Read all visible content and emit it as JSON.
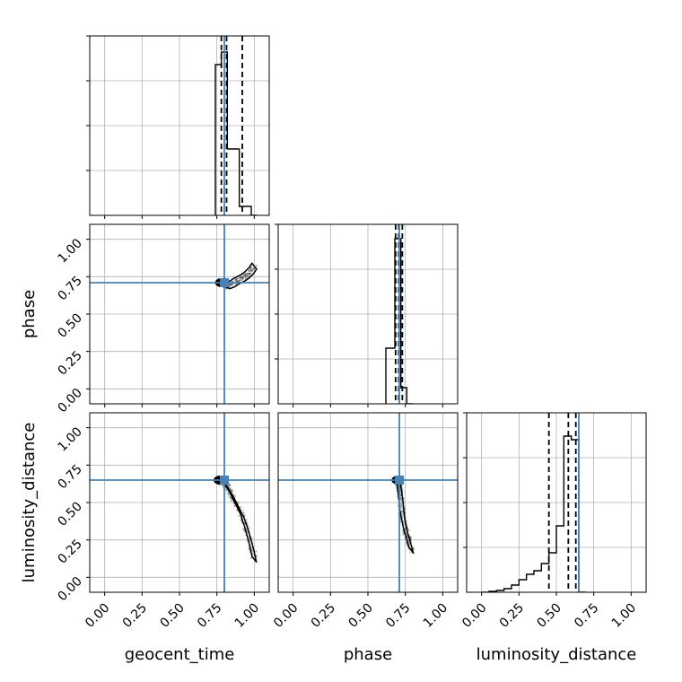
{
  "chart_data": {
    "type": "corner",
    "parameters": [
      "geocent_time",
      "phase",
      "luminosity_distance"
    ],
    "truth_color": "#4682b4",
    "axis_range": [
      -0.1,
      1.1
    ],
    "tick_labels": [
      "0.00",
      "0.25",
      "0.50",
      "0.75",
      "1.00"
    ],
    "tick_values": [
      0.0,
      0.25,
      0.5,
      0.75,
      1.0
    ],
    "truths": {
      "geocent_time": 0.8,
      "phase": 0.71,
      "luminosity_distance": 0.65
    },
    "histograms": {
      "geocent_time": {
        "bin_edges": [
          0.74,
          0.78,
          0.82,
          0.86,
          0.9,
          0.94,
          0.98,
          1.02
        ],
        "counts": [
          0.84,
          0.91,
          0.37,
          0.37,
          0.05,
          0.05,
          0.0
        ],
        "quantile_lines": [
          0.78,
          0.815,
          0.92
        ]
      },
      "phase": {
        "bin_edges": [
          0.62,
          0.66,
          0.68,
          0.7,
          0.72,
          0.74,
          0.76,
          0.8
        ],
        "counts": [
          0.31,
          0.31,
          0.92,
          0.92,
          0.09,
          0.09,
          0.0
        ],
        "quantile_lines": [
          0.685,
          0.706,
          0.73
        ]
      },
      "luminosity_distance": {
        "bin_edges": [
          0.0,
          0.05,
          0.1,
          0.15,
          0.2,
          0.25,
          0.3,
          0.35,
          0.4,
          0.45,
          0.5,
          0.55,
          0.6,
          0.65,
          0.7
        ],
        "counts": [
          0.0,
          0.005,
          0.01,
          0.02,
          0.04,
          0.07,
          0.1,
          0.12,
          0.16,
          0.22,
          0.37,
          0.87,
          0.85,
          0.0
        ],
        "quantile_lines": [
          0.45,
          0.58,
          0.63
        ]
      }
    },
    "scatter": {
      "phase_vs_geocent_time": {
        "x_param": "geocent_time",
        "y_param": "phase",
        "curve_points": [
          [
            0.78,
            0.71
          ],
          [
            0.8,
            0.7
          ],
          [
            0.82,
            0.69
          ],
          [
            0.85,
            0.7
          ],
          [
            0.88,
            0.72
          ],
          [
            0.92,
            0.74
          ],
          [
            0.95,
            0.76
          ],
          [
            0.98,
            0.79
          ],
          [
            1.0,
            0.82
          ]
        ]
      },
      "luminosity_distance_vs_geocent_time": {
        "x_param": "geocent_time",
        "y_param": "luminosity_distance",
        "curve_points": [
          [
            0.77,
            0.65
          ],
          [
            0.8,
            0.63
          ],
          [
            0.82,
            0.6
          ],
          [
            0.85,
            0.55
          ],
          [
            0.88,
            0.49
          ],
          [
            0.92,
            0.41
          ],
          [
            0.95,
            0.32
          ],
          [
            0.98,
            0.21
          ],
          [
            1.0,
            0.12
          ]
        ]
      },
      "luminosity_distance_vs_phase": {
        "x_param": "phase",
        "y_param": "luminosity_distance",
        "curve_points": [
          [
            0.7,
            0.65
          ],
          [
            0.71,
            0.6
          ],
          [
            0.72,
            0.52
          ],
          [
            0.73,
            0.42
          ],
          [
            0.75,
            0.32
          ],
          [
            0.77,
            0.25
          ],
          [
            0.79,
            0.18
          ]
        ]
      }
    }
  }
}
